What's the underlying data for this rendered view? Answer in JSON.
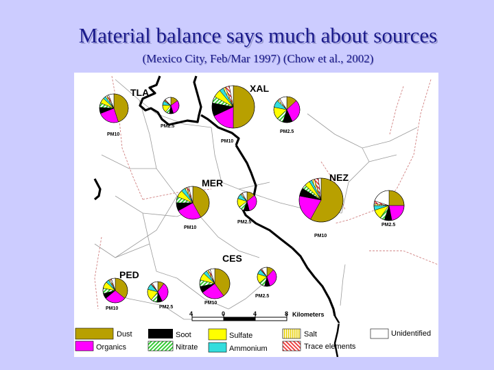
{
  "title": "Material balance says much about sources",
  "subtitle": "(Mexico City, Feb/Mar 1997) (Chow et al., 2002)",
  "colors": {
    "background": "#ccccff",
    "title": "#1a1a8c",
    "Dust": "#b8a000",
    "Organics": "#ff00ff",
    "Soot": "#000000",
    "Nitrate": "#33cc33",
    "Sulfate": "#ffff00",
    "Ammonium": "#33dddd",
    "Salt": "#e8d000",
    "Trace elements": "#ee4444",
    "Unidentified": "#ffffff"
  },
  "sites": [
    {
      "name": "TLA",
      "labels": [
        "PM10",
        "PM2.5"
      ]
    },
    {
      "name": "XAL",
      "labels": [
        "PM10",
        "PM2.5"
      ]
    },
    {
      "name": "MER",
      "labels": [
        "PM10",
        "PM2.5"
      ]
    },
    {
      "name": "NEZ",
      "labels": [
        "PM10",
        "PM2.5"
      ]
    },
    {
      "name": "CES",
      "labels": [
        "PM10",
        "PM2.5"
      ]
    },
    {
      "name": "PED",
      "labels": [
        "PM10",
        "PM2.5"
      ]
    }
  ],
  "pies": [
    {
      "site": "TLA",
      "fraction": "PM10",
      "slices": [
        {
          "component": "Dust",
          "value": 45
        },
        {
          "component": "Organics",
          "value": 24
        },
        {
          "component": "Soot",
          "value": 7
        },
        {
          "component": "Nitrate",
          "value": 5
        },
        {
          "component": "Sulfate",
          "value": 6
        },
        {
          "component": "Ammonium",
          "value": 3
        },
        {
          "component": "Salt",
          "value": 2
        },
        {
          "component": "Trace elements",
          "value": 2
        },
        {
          "component": "Unidentified",
          "value": 6
        }
      ]
    },
    {
      "site": "TLA",
      "fraction": "PM2.5",
      "slices": [
        {
          "component": "Dust",
          "value": 15
        },
        {
          "component": "Organics",
          "value": 30
        },
        {
          "component": "Soot",
          "value": 8
        },
        {
          "component": "Nitrate",
          "value": 8
        },
        {
          "component": "Sulfate",
          "value": 15
        },
        {
          "component": "Ammonium",
          "value": 8
        },
        {
          "component": "Salt",
          "value": 2
        },
        {
          "component": "Trace elements",
          "value": 2
        },
        {
          "component": "Unidentified",
          "value": 12
        }
      ]
    },
    {
      "site": "XAL",
      "fraction": "PM10",
      "slices": [
        {
          "component": "Dust",
          "value": 50
        },
        {
          "component": "Organics",
          "value": 18
        },
        {
          "component": "Soot",
          "value": 10
        },
        {
          "component": "Nitrate",
          "value": 5
        },
        {
          "component": "Sulfate",
          "value": 6
        },
        {
          "component": "Ammonium",
          "value": 3
        },
        {
          "component": "Salt",
          "value": 2
        },
        {
          "component": "Trace elements",
          "value": 3
        },
        {
          "component": "Unidentified",
          "value": 3
        }
      ]
    },
    {
      "site": "XAL",
      "fraction": "PM2.5",
      "slices": [
        {
          "component": "Dust",
          "value": 13
        },
        {
          "component": "Organics",
          "value": 30
        },
        {
          "component": "Soot",
          "value": 12
        },
        {
          "component": "Nitrate",
          "value": 8
        },
        {
          "component": "Sulfate",
          "value": 15
        },
        {
          "component": "Ammonium",
          "value": 9
        },
        {
          "component": "Salt",
          "value": 2
        },
        {
          "component": "Trace elements",
          "value": 2
        },
        {
          "component": "Unidentified",
          "value": 9
        }
      ]
    },
    {
      "site": "MER",
      "fraction": "PM10",
      "slices": [
        {
          "component": "Dust",
          "value": 42
        },
        {
          "component": "Organics",
          "value": 25
        },
        {
          "component": "Soot",
          "value": 8
        },
        {
          "component": "Nitrate",
          "value": 6
        },
        {
          "component": "Sulfate",
          "value": 7
        },
        {
          "component": "Ammonium",
          "value": 4
        },
        {
          "component": "Salt",
          "value": 2
        },
        {
          "component": "Trace elements",
          "value": 2
        },
        {
          "component": "Unidentified",
          "value": 4
        }
      ]
    },
    {
      "site": "MER",
      "fraction": "PM2.5",
      "slices": [
        {
          "component": "Dust",
          "value": 14
        },
        {
          "component": "Organics",
          "value": 32
        },
        {
          "component": "Soot",
          "value": 10
        },
        {
          "component": "Nitrate",
          "value": 9
        },
        {
          "component": "Sulfate",
          "value": 15
        },
        {
          "component": "Ammonium",
          "value": 8
        },
        {
          "component": "Salt",
          "value": 2
        },
        {
          "component": "Trace elements",
          "value": 2
        },
        {
          "component": "Unidentified",
          "value": 8
        }
      ]
    },
    {
      "site": "NEZ",
      "fraction": "PM10",
      "slices": [
        {
          "component": "Dust",
          "value": 58
        },
        {
          "component": "Organics",
          "value": 20
        },
        {
          "component": "Soot",
          "value": 6
        },
        {
          "component": "Nitrate",
          "value": 3
        },
        {
          "component": "Sulfate",
          "value": 4
        },
        {
          "component": "Ammonium",
          "value": 2
        },
        {
          "component": "Salt",
          "value": 2
        },
        {
          "component": "Trace elements",
          "value": 3
        },
        {
          "component": "Unidentified",
          "value": 2
        }
      ]
    },
    {
      "site": "NEZ",
      "fraction": "PM2.5",
      "slices": [
        {
          "component": "Dust",
          "value": 25
        },
        {
          "component": "Organics",
          "value": 22
        },
        {
          "component": "Soot",
          "value": 8
        },
        {
          "component": "Nitrate",
          "value": 5
        },
        {
          "component": "Sulfate",
          "value": 10
        },
        {
          "component": "Ammonium",
          "value": 5
        },
        {
          "component": "Salt",
          "value": 2
        },
        {
          "component": "Trace elements",
          "value": 3
        },
        {
          "component": "Unidentified",
          "value": 20
        }
      ]
    },
    {
      "site": "CES",
      "fraction": "PM10",
      "slices": [
        {
          "component": "Dust",
          "value": 40
        },
        {
          "component": "Organics",
          "value": 25
        },
        {
          "component": "Soot",
          "value": 7
        },
        {
          "component": "Nitrate",
          "value": 7
        },
        {
          "component": "Sulfate",
          "value": 8
        },
        {
          "component": "Ammonium",
          "value": 4
        },
        {
          "component": "Salt",
          "value": 2
        },
        {
          "component": "Trace elements",
          "value": 2
        },
        {
          "component": "Unidentified",
          "value": 5
        }
      ]
    },
    {
      "site": "CES",
      "fraction": "PM2.5",
      "slices": [
        {
          "component": "Dust",
          "value": 12
        },
        {
          "component": "Organics",
          "value": 33
        },
        {
          "component": "Soot",
          "value": 9
        },
        {
          "component": "Nitrate",
          "value": 10
        },
        {
          "component": "Sulfate",
          "value": 16
        },
        {
          "component": "Ammonium",
          "value": 8
        },
        {
          "component": "Salt",
          "value": 1
        },
        {
          "component": "Trace elements",
          "value": 2
        },
        {
          "component": "Unidentified",
          "value": 9
        }
      ]
    },
    {
      "site": "PED",
      "fraction": "PM10",
      "slices": [
        {
          "component": "Dust",
          "value": 36
        },
        {
          "component": "Organics",
          "value": 28
        },
        {
          "component": "Soot",
          "value": 7
        },
        {
          "component": "Nitrate",
          "value": 7
        },
        {
          "component": "Sulfate",
          "value": 9
        },
        {
          "component": "Ammonium",
          "value": 4
        },
        {
          "component": "Salt",
          "value": 2
        },
        {
          "component": "Trace elements",
          "value": 2
        },
        {
          "component": "Unidentified",
          "value": 5
        }
      ]
    },
    {
      "site": "PED",
      "fraction": "PM2.5",
      "slices": [
        {
          "component": "Dust",
          "value": 10
        },
        {
          "component": "Organics",
          "value": 33
        },
        {
          "component": "Soot",
          "value": 8
        },
        {
          "component": "Nitrate",
          "value": 10
        },
        {
          "component": "Sulfate",
          "value": 18
        },
        {
          "component": "Ammonium",
          "value": 9
        },
        {
          "component": "Salt",
          "value": 1
        },
        {
          "component": "Trace elements",
          "value": 2
        },
        {
          "component": "Unidentified",
          "value": 9
        }
      ]
    }
  ],
  "scale_bar": {
    "ticks": [
      "4",
      "0",
      "4",
      "8"
    ],
    "unit": "Kilometers"
  },
  "legend": [
    {
      "component": "Dust",
      "label": "Dust"
    },
    {
      "component": "Organics",
      "label": "Organics"
    },
    {
      "component": "Soot",
      "label": "Soot"
    },
    {
      "component": "Nitrate",
      "label": "Nitrate"
    },
    {
      "component": "Sulfate",
      "label": "Sulfate"
    },
    {
      "component": "Ammonium",
      "label": "Ammonium"
    },
    {
      "component": "Salt",
      "label": "Salt"
    },
    {
      "component": "Trace elements",
      "label": "Trace elements"
    },
    {
      "component": "Unidentified",
      "label": "Unidentified"
    }
  ]
}
